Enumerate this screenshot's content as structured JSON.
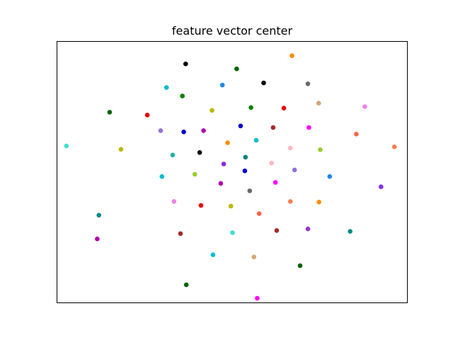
{
  "chart_data": {
    "type": "scatter",
    "title": "feature vector center",
    "xlabel": "",
    "ylabel": "",
    "axes_visible": false,
    "grid": false,
    "xlim": [
      -5.4,
      5.4
    ],
    "ylim": [
      -4.2,
      4.2
    ],
    "points": [
      {
        "x": -1.43,
        "y": 3.47,
        "color": "#000000"
      },
      {
        "x": 0.14,
        "y": 3.31,
        "color": "#006400"
      },
      {
        "x": 1.84,
        "y": 3.73,
        "color": "#ff8c00"
      },
      {
        "x": -2.02,
        "y": 2.71,
        "color": "#00bcd4"
      },
      {
        "x": -0.3,
        "y": 2.79,
        "color": "#1e88e5"
      },
      {
        "x": 0.97,
        "y": 2.86,
        "color": "#000000"
      },
      {
        "x": 2.33,
        "y": 2.83,
        "color": "#696969"
      },
      {
        "x": -1.53,
        "y": 2.44,
        "color": "#008000"
      },
      {
        "x": 2.66,
        "y": 2.21,
        "color": "#d2a679"
      },
      {
        "x": 4.08,
        "y": 2.1,
        "color": "#ee82ee"
      },
      {
        "x": -3.77,
        "y": 1.92,
        "color": "#006400"
      },
      {
        "x": -2.61,
        "y": 1.83,
        "color": "#e60000"
      },
      {
        "x": -0.62,
        "y": 1.98,
        "color": "#bdb700"
      },
      {
        "x": 0.58,
        "y": 2.07,
        "color": "#008000"
      },
      {
        "x": 1.59,
        "y": 2.05,
        "color": "#e60000"
      },
      {
        "x": -2.2,
        "y": 1.33,
        "color": "#9370db"
      },
      {
        "x": -1.49,
        "y": 1.29,
        "color": "#0000cd"
      },
      {
        "x": -0.88,
        "y": 1.33,
        "color": "#b000b0"
      },
      {
        "x": 0.26,
        "y": 1.48,
        "color": "#0000cd"
      },
      {
        "x": 1.26,
        "y": 1.43,
        "color": "#a52a2a"
      },
      {
        "x": 2.36,
        "y": 1.43,
        "color": "#ff00ff"
      },
      {
        "x": 3.82,
        "y": 1.22,
        "color": "#ff6347"
      },
      {
        "x": -5.1,
        "y": 0.84,
        "color": "#40e0d0"
      },
      {
        "x": -3.42,
        "y": 0.73,
        "color": "#bdb700"
      },
      {
        "x": -0.14,
        "y": 0.94,
        "color": "#ff8c00"
      },
      {
        "x": 0.74,
        "y": 1.02,
        "color": "#00bcd4"
      },
      {
        "x": 1.79,
        "y": 0.77,
        "color": "#ffb6c1"
      },
      {
        "x": 2.71,
        "y": 0.72,
        "color": "#9acd32"
      },
      {
        "x": 4.99,
        "y": 0.81,
        "color": "#ff7f50"
      },
      {
        "x": -1.83,
        "y": 0.55,
        "color": "#20b2aa"
      },
      {
        "x": -1.0,
        "y": 0.63,
        "color": "#000000"
      },
      {
        "x": 0.41,
        "y": 0.48,
        "color": "#008080"
      },
      {
        "x": 1.21,
        "y": 0.29,
        "color": "#ffb6c1"
      },
      {
        "x": -0.26,
        "y": 0.26,
        "color": "#8a2be2"
      },
      {
        "x": 0.39,
        "y": 0.04,
        "color": "#0000cd"
      },
      {
        "x": 1.92,
        "y": 0.07,
        "color": "#9370db"
      },
      {
        "x": -2.16,
        "y": -0.14,
        "color": "#00bcd4"
      },
      {
        "x": -1.15,
        "y": -0.07,
        "color": "#9acd32"
      },
      {
        "x": 3.0,
        "y": -0.14,
        "color": "#1e88e5"
      },
      {
        "x": -0.35,
        "y": -0.36,
        "color": "#b000b0"
      },
      {
        "x": 1.33,
        "y": -0.33,
        "color": "#ff00ff"
      },
      {
        "x": 4.58,
        "y": -0.47,
        "color": "#8a2be2"
      },
      {
        "x": 0.54,
        "y": -0.6,
        "color": "#696969"
      },
      {
        "x": -1.79,
        "y": -0.94,
        "color": "#ee82ee"
      },
      {
        "x": -0.96,
        "y": -1.07,
        "color": "#e60000"
      },
      {
        "x": -0.04,
        "y": -1.09,
        "color": "#bdb700"
      },
      {
        "x": 1.79,
        "y": -0.94,
        "color": "#ff7f50"
      },
      {
        "x": 2.67,
        "y": -0.96,
        "color": "#ff8c00"
      },
      {
        "x": 0.83,
        "y": -1.33,
        "color": "#ff6347"
      },
      {
        "x": -4.1,
        "y": -1.38,
        "color": "#008b8b"
      },
      {
        "x": -1.59,
        "y": -1.97,
        "color": "#a52a2a"
      },
      {
        "x": 0.01,
        "y": -1.94,
        "color": "#40e0d0"
      },
      {
        "x": 1.37,
        "y": -1.87,
        "color": "#a52a2a"
      },
      {
        "x": 2.33,
        "y": -1.82,
        "color": "#9932cc"
      },
      {
        "x": 3.63,
        "y": -1.9,
        "color": "#008b8b"
      },
      {
        "x": -4.15,
        "y": -2.14,
        "color": "#b000b0"
      },
      {
        "x": -0.59,
        "y": -2.65,
        "color": "#00bcd4"
      },
      {
        "x": 0.67,
        "y": -2.72,
        "color": "#d2a679"
      },
      {
        "x": 2.09,
        "y": -3.0,
        "color": "#006400"
      },
      {
        "x": -1.41,
        "y": -3.61,
        "color": "#006400"
      },
      {
        "x": 0.77,
        "y": -4.04,
        "color": "#ff00ff"
      }
    ]
  }
}
